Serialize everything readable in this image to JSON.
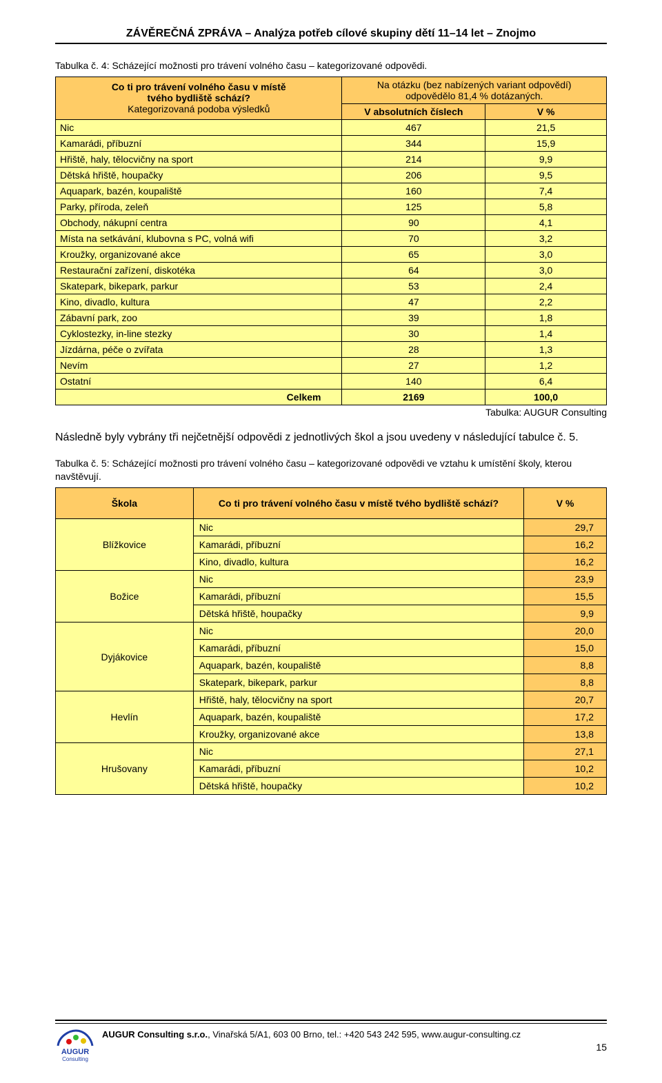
{
  "header": {
    "title": "ZÁVĚREČNÁ ZPRÁVA – Analýza potřeb cílové skupiny dětí 11–14 let – Znojmo"
  },
  "captions": {
    "t1": "Tabulka č. 4: Scházející možnosti pro trávení volného času – kategorizované odpovědi.",
    "t2": "Tabulka č. 5: Scházející možnosti pro trávení volného času – kategorizované odpovědi ve vztahu k umístění školy, kterou navštěvují."
  },
  "t1": {
    "question_line1": "Co ti pro trávení volného času v místě",
    "question_line2": "tvého bydliště schází?",
    "question_sub": "Kategorizovaná podoba výsledků",
    "resp_line1": "Na otázku (bez nabízených variant odpovědí)",
    "resp_line2": "odpovědělo 81,4 % dotázaných.",
    "col_abs": "V absolutních číslech",
    "col_pct": "V %",
    "header_bg": "#ffcc66",
    "row_bg": "#ffff99",
    "rows": [
      {
        "label": "Nic",
        "abs": "467",
        "pct": "21,5"
      },
      {
        "label": "Kamarádi, příbuzní",
        "abs": "344",
        "pct": "15,9"
      },
      {
        "label": "Hřiště, haly, tělocvičny na sport",
        "abs": "214",
        "pct": "9,9"
      },
      {
        "label": "Dětská hřiště, houpačky",
        "abs": "206",
        "pct": "9,5"
      },
      {
        "label": "Aquapark, bazén, koupaliště",
        "abs": "160",
        "pct": "7,4"
      },
      {
        "label": "Parky, příroda, zeleň",
        "abs": "125",
        "pct": "5,8"
      },
      {
        "label": "Obchody, nákupní centra",
        "abs": "90",
        "pct": "4,1"
      },
      {
        "label": "Místa na setkávání, klubovna s PC, volná wifi",
        "abs": "70",
        "pct": "3,2"
      },
      {
        "label": "Kroužky, organizované akce",
        "abs": "65",
        "pct": "3,0"
      },
      {
        "label": "Restaurační zařízení, diskotéka",
        "abs": "64",
        "pct": "3,0"
      },
      {
        "label": "Skatepark, bikepark, parkur",
        "abs": "53",
        "pct": "2,4"
      },
      {
        "label": "Kino, divadlo, kultura",
        "abs": "47",
        "pct": "2,2"
      },
      {
        "label": "Zábavní park, zoo",
        "abs": "39",
        "pct": "1,8"
      },
      {
        "label": "Cyklostezky, in-line stezky",
        "abs": "30",
        "pct": "1,4"
      },
      {
        "label": "Jízdárna, péče o zvířata",
        "abs": "28",
        "pct": "1,3"
      },
      {
        "label": "Nevím",
        "abs": "27",
        "pct": "1,2"
      },
      {
        "label": "Ostatní",
        "abs": "140",
        "pct": "6,4"
      }
    ],
    "total": {
      "label": "Celkem",
      "abs": "2169",
      "pct": "100,0"
    },
    "source": "Tabulka: AUGUR Consulting"
  },
  "para1": "Následně byly vybrány tři nejčetnější odpovědi z jednotlivých škol a jsou uvedeny v následující tabulce č. 5.",
  "t2": {
    "col_school": "Škola",
    "col_question": "Co ti pro trávení volného času v místě tvého bydliště schází?",
    "col_pct": "V %",
    "header_bg": "#ffcc66",
    "cell_bg": "#ffff99",
    "pct_bg": "#ffcc66",
    "groups": [
      {
        "school": "Blížkovice",
        "rows": [
          {
            "cat": "Nic",
            "pct": "29,7"
          },
          {
            "cat": "Kamarádi, příbuzní",
            "pct": "16,2"
          },
          {
            "cat": "Kino, divadlo, kultura",
            "pct": "16,2"
          }
        ]
      },
      {
        "school": "Božice",
        "rows": [
          {
            "cat": "Nic",
            "pct": "23,9"
          },
          {
            "cat": "Kamarádi, příbuzní",
            "pct": "15,5"
          },
          {
            "cat": "Dětská hřiště, houpačky",
            "pct": "9,9"
          }
        ]
      },
      {
        "school": "Dyjákovice",
        "rows": [
          {
            "cat": "Nic",
            "pct": "20,0"
          },
          {
            "cat": "Kamarádi, příbuzní",
            "pct": "15,0"
          },
          {
            "cat": "Aquapark, bazén, koupaliště",
            "pct": "8,8"
          },
          {
            "cat": "Skatepark, bikepark, parkur",
            "pct": "8,8"
          }
        ]
      },
      {
        "school": "Hevlín",
        "rows": [
          {
            "cat": "Hřiště, haly, tělocvičny na sport",
            "pct": "20,7"
          },
          {
            "cat": "Aquapark, bazén, koupaliště",
            "pct": "17,2"
          },
          {
            "cat": "Kroužky, organizované akce",
            "pct": "13,8"
          }
        ]
      },
      {
        "school": "Hrušovany",
        "rows": [
          {
            "cat": "Nic",
            "pct": "27,1"
          },
          {
            "cat": "Kamarádi, příbuzní",
            "pct": "10,2"
          },
          {
            "cat": "Dětská hřiště, houpačky",
            "pct": "10,2"
          }
        ]
      }
    ]
  },
  "footer": {
    "company_bold": "AUGUR Consulting s.r.o.",
    "company_rest": ", Vinařská 5/A1, 603 00 Brno, tel.: +420 543 242 595, www.augur-consulting.cz",
    "logo_text_top": "AUGUR",
    "logo_text_bottom": "Consulting",
    "page": "15"
  }
}
